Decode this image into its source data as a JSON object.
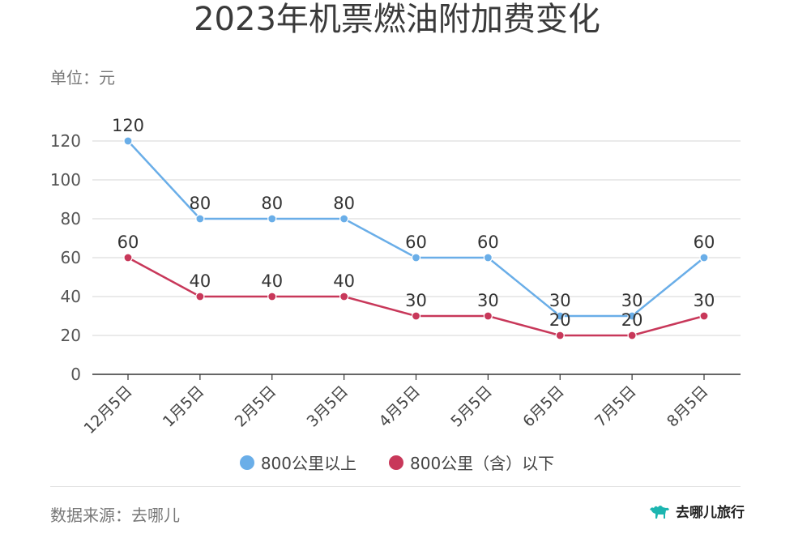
{
  "chart_data": {
    "type": "line",
    "title": "2023年机票燃油附加费变化",
    "unit_label": "单位：元",
    "categories": [
      "12月5日",
      "1月5日",
      "2月5日",
      "3月5日",
      "4月5日",
      "5月5日",
      "6月5日",
      "7月5日",
      "8月5日"
    ],
    "ylim": [
      0,
      130
    ],
    "yticks": [
      0,
      20,
      40,
      60,
      80,
      100,
      120
    ],
    "grid": true,
    "legend_position": "bottom",
    "series": [
      {
        "name": "800公里以上",
        "color": "#6aaee8",
        "values": [
          120,
          80,
          80,
          80,
          60,
          60,
          30,
          30,
          60
        ]
      },
      {
        "name": "800公里（含）以下",
        "color": "#c8385a",
        "values": [
          60,
          40,
          40,
          40,
          30,
          30,
          20,
          20,
          30
        ]
      }
    ]
  },
  "footer": {
    "source": "数据来源：去哪儿",
    "brand": "去哪儿旅行",
    "brand_color": "#1cb5b0"
  }
}
